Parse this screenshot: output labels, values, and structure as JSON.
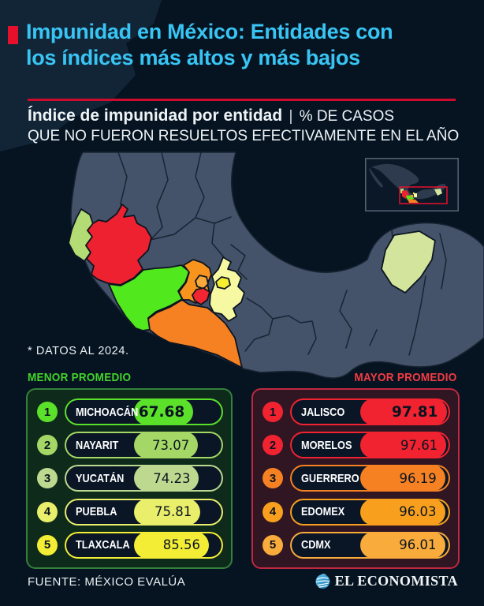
{
  "header": {
    "accent_color": "#e60f2c",
    "title_line1": "Impunidad en México: Entidades con",
    "title_line2": "los índices más altos y más bajos",
    "title_color": "#38c5f4",
    "rule_color": "#cf0a2c",
    "subtitle_bold": "Índice de impunidad por entidad",
    "subtitle_divider": "|",
    "subtitle_tail": "% DE CASOS",
    "subtitle_line2": "QUE NO FUERON RESUELTOS EFECTIVAMENTE EN EL AÑO"
  },
  "map": {
    "note": "* DATOS AL 2024.",
    "land_color": "#44536a",
    "border_color": "#182433",
    "sea_color": "#061422",
    "inset": {
      "frame_color": "#5c6b7a",
      "zoom_rect_color": "#e8112d"
    },
    "states": [
      {
        "id": "nayarit",
        "name": "Nayarit",
        "color": "#b3dc74"
      },
      {
        "id": "jalisco",
        "name": "Jalisco",
        "color": "#ee2130"
      },
      {
        "id": "michoacan",
        "name": "Michoacán",
        "color": "#52e81e"
      },
      {
        "id": "guerrero",
        "name": "Guerrero",
        "color": "#f58122"
      },
      {
        "id": "edomex",
        "name": "Edomex",
        "color": "#f8941d"
      },
      {
        "id": "cdmx",
        "name": "CDMX",
        "color": "#f9a83c"
      },
      {
        "id": "morelos",
        "name": "Morelos",
        "color": "#f22531"
      },
      {
        "id": "tlaxcala",
        "name": "Tlaxcala",
        "color": "#f6ef2f"
      },
      {
        "id": "puebla",
        "name": "Puebla",
        "color": "#f7f9a2"
      },
      {
        "id": "yucatan",
        "name": "Yucatán",
        "color": "#d3e49c"
      }
    ]
  },
  "chart_data": {
    "type": "table",
    "title": "Índice de impunidad por entidad: % de casos que no fueron resueltos efectivamente en el año (datos al 2024)",
    "series": [
      {
        "name": "Menor promedio",
        "rows": [
          [
            "Michoacán",
            67.68
          ],
          [
            "Nayarit",
            73.07
          ],
          [
            "Yucatán",
            74.23
          ],
          [
            "Puebla",
            75.81
          ],
          [
            "Tlaxcala",
            85.56
          ]
        ]
      },
      {
        "name": "Mayor promedio",
        "rows": [
          [
            "Jalisco",
            97.81
          ],
          [
            "Morelos",
            97.61
          ],
          [
            "Guerrero",
            96.19
          ],
          [
            "Edomex",
            96.03
          ],
          [
            "CDMX",
            96.01
          ]
        ]
      }
    ]
  },
  "tables": {
    "menor": {
      "title": "MENOR PROMEDIO",
      "title_color": "#43d42a",
      "panel_bg": "#0e2a1b",
      "panel_border": "#35813a",
      "rows": [
        {
          "rank": "1",
          "name": "MICHOACÁN",
          "value": "67.68",
          "color": "#5ce12b",
          "bold": true
        },
        {
          "rank": "2",
          "name": "NAYARIT",
          "value": "73.07",
          "color": "#a4d765"
        },
        {
          "rank": "3",
          "name": "YUCATÁN",
          "value": "74.23",
          "color": "#bdd98f"
        },
        {
          "rank": "4",
          "name": "PUEBLA",
          "value": "75.81",
          "color": "#e9ee6b"
        },
        {
          "rank": "5",
          "name": "TLAXCALA",
          "value": "85.56",
          "color": "#f3ee35"
        }
      ]
    },
    "mayor": {
      "title": "MAYOR PROMEDIO",
      "title_color": "#f43b42",
      "panel_bg": "#301523",
      "panel_border": "#bf2840",
      "rows": [
        {
          "rank": "1",
          "name": "JALISCO",
          "value": "97.81",
          "color": "#f22330",
          "bold": true
        },
        {
          "rank": "2",
          "name": "MORELOS",
          "value": "97.61",
          "color": "#f22330"
        },
        {
          "rank": "3",
          "name": "GUERRERO",
          "value": "96.19",
          "color": "#f58122"
        },
        {
          "rank": "4",
          "name": "EDOMEX",
          "value": "96.03",
          "color": "#f8a01e"
        },
        {
          "rank": "5",
          "name": "CDMX",
          "value": "96.01",
          "color": "#f9ab3c"
        }
      ]
    }
  },
  "footer": {
    "source": "FUENTE: MÉXICO EVALÚA",
    "brand": "EL ECONOMISTA"
  }
}
